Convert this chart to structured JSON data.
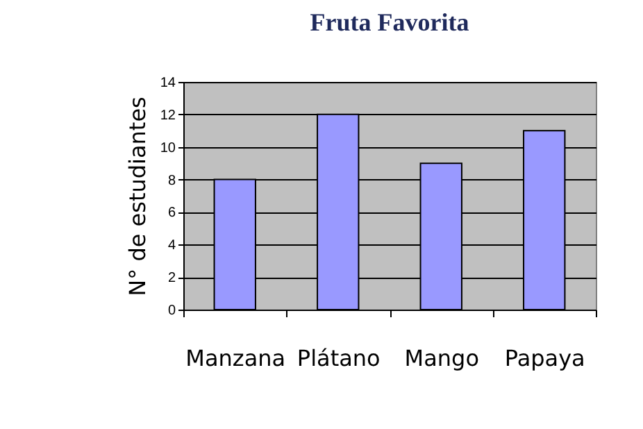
{
  "chart_data": {
    "type": "bar",
    "title": "Fruta Favorita",
    "ylabel": "N° de estudiantes",
    "categories": [
      "Manzana",
      "Plátano",
      "Mango",
      "Papaya"
    ],
    "values": [
      8,
      12,
      9,
      11
    ],
    "color": "#9999ff",
    "ylim": [
      0,
      14
    ],
    "yticks": [
      0,
      2,
      4,
      6,
      8,
      10,
      12,
      14
    ],
    "grid": "y"
  }
}
